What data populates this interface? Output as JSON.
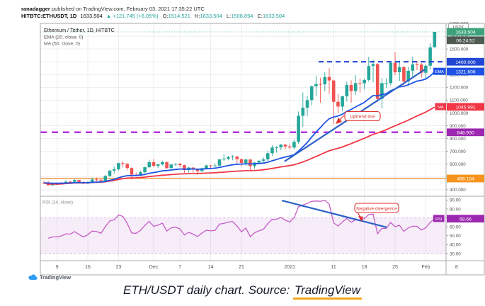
{
  "header": {
    "byline_user": "ranadagger",
    "byline_rest": " published on TradingView.com, February 03, 2021 17:35:22 UTC",
    "symbol": "HITBTC:ETHUSDT, 1D",
    "price": "1633.504",
    "change": "▲ +121.745 (+8.05%)",
    "o_label": "O:",
    "o": "1514.521",
    "h_label": "H:",
    "h": "1633.504",
    "l_label": "L:",
    "l": "1508.894",
    "c_label": "C:",
    "c": "1633.504"
  },
  "legend": {
    "main_title": "Ethereum / Tether, 1D, HITBTC",
    "ema_label": "EMA (20, close, 0)",
    "ma_label": "MA (50, close, 0)",
    "rsi": "RSI (14, close)"
  },
  "annotations": {
    "uptrend": "Uptrend line",
    "divergence": "Negative divergence"
  },
  "price_scale": {
    "symbol_box": "USDT",
    "last_price": "1633.504",
    "countdown": "06:24:52",
    "levels": {
      "blue_dashed": {
        "value": 1400,
        "label": "1400.000"
      },
      "ema": {
        "tag": "EMA",
        "value": 1321.608,
        "label": "1321.608"
      },
      "ma": {
        "tag": "MA",
        "value": 1045.991,
        "label": "1045.991"
      },
      "purple_dashed": {
        "value": 848.93,
        "label": "848.930"
      },
      "orange": {
        "value": 488.134,
        "label": "488.134"
      }
    }
  },
  "rsi_scale": {
    "tag": "RSI",
    "value": 68.66,
    "label": "68.66"
  },
  "watermark": {
    "brand": "TradingView"
  },
  "caption": {
    "text": "ETH/USDT daily chart. Source: ",
    "link": "TradingView"
  },
  "colors": {
    "up": "#26a69a",
    "down": "#ef5350",
    "ema": "#1e53e5",
    "ma": "#f23645",
    "drawn_line": "#2d63c8",
    "rsi_line": "#c65cc6",
    "purple_level": "#b433e0",
    "purple_badge": "#9c27b0",
    "orange_level": "#f2a254",
    "orange_badge": "#f7941d",
    "blue_level": "#2247d4",
    "price_badge": "#3da27b",
    "countdown_badge": "#4e5a52",
    "annotation": "#e0312e",
    "grid": "#ededf0",
    "border": "#a8a8a8",
    "axis_text": "#555555",
    "band_fill": "rgba(164,80,196,0.10)",
    "band_edge": "#d9b8e6",
    "link_underline": "#f5a623"
  },
  "chart_data": {
    "type": "candlestick",
    "title": "Ethereum / Tether, 1D, HITBTC",
    "x_axis": {
      "labels": [
        [
          3,
          "9"
        ],
        [
          10,
          "16"
        ],
        [
          17,
          "23"
        ],
        [
          25,
          "Dec"
        ],
        [
          31,
          "7"
        ],
        [
          38,
          "14"
        ],
        [
          45,
          "21"
        ],
        [
          56,
          "2021"
        ],
        [
          66,
          "11"
        ],
        [
          73,
          "18"
        ],
        [
          80,
          "25"
        ],
        [
          87,
          "Feb"
        ],
        [
          94,
          "8"
        ]
      ]
    },
    "price_axis": {
      "min": 355,
      "max": 1700,
      "tick_min": 400,
      "tick_max": 1700,
      "tick_step": 100
    },
    "overlays": {
      "ema_period": 20,
      "ma_period": 50
    },
    "levels": {
      "resistance": 1400,
      "support_purple": 848.93,
      "support_orange": 488.134,
      "last": 1633.504,
      "ema": 1321.608,
      "ma": 1045.991
    },
    "trendlines": {
      "main": {
        "from": [
          54.8,
          621
        ],
        "to": [
          86.8,
          1340
        ]
      }
    },
    "rsi": {
      "period": 14,
      "last": 68.66,
      "band": [
        30,
        70
      ],
      "axis_ticks": [
        30,
        40,
        50,
        60,
        70,
        80,
        90
      ],
      "trendline": {
        "from": [
          54.2,
          89.5
        ],
        "to": [
          78.1,
          59.4
        ]
      }
    },
    "candles_ohlc": [
      [
        455,
        468,
        444,
        454
      ],
      [
        454,
        468,
        433,
        435
      ],
      [
        435,
        455,
        430,
        444
      ],
      [
        444,
        452,
        438,
        444
      ],
      [
        444,
        460,
        440,
        450
      ],
      [
        450,
        473,
        448,
        463
      ],
      [
        463,
        470,
        452,
        462
      ],
      [
        462,
        482,
        453,
        476
      ],
      [
        476,
        478,
        455,
        461
      ],
      [
        461,
        465,
        445,
        448
      ],
      [
        448,
        468,
        444,
        460
      ],
      [
        460,
        495,
        455,
        480
      ],
      [
        480,
        495,
        465,
        478
      ],
      [
        478,
        482,
        460,
        470
      ],
      [
        470,
        515,
        466,
        508
      ],
      [
        508,
        552,
        500,
        550
      ],
      [
        550,
        580,
        525,
        560
      ],
      [
        560,
        612,
        552,
        608
      ],
      [
        608,
        623,
        575,
        602
      ],
      [
        602,
        608,
        553,
        570
      ],
      [
        570,
        577,
        480,
        518
      ],
      [
        518,
        535,
        505,
        516
      ],
      [
        516,
        548,
        508,
        537
      ],
      [
        537,
        580,
        530,
        576
      ],
      [
        576,
        635,
        570,
        615
      ],
      [
        615,
        640,
        575,
        587
      ],
      [
        587,
        603,
        570,
        598
      ],
      [
        598,
        625,
        590,
        616
      ],
      [
        616,
        620,
        560,
        569
      ],
      [
        569,
        601,
        565,
        597
      ],
      [
        597,
        607,
        585,
        602
      ],
      [
        602,
        608,
        578,
        592
      ],
      [
        592,
        595,
        532,
        554
      ],
      [
        554,
        578,
        535,
        573
      ],
      [
        573,
        577,
        535,
        561
      ],
      [
        561,
        567,
        515,
        545
      ],
      [
        545,
        573,
        540,
        568
      ],
      [
        568,
        595,
        562,
        590
      ],
      [
        590,
        593,
        570,
        586
      ],
      [
        586,
        605,
        570,
        589
      ],
      [
        589,
        640,
        585,
        637
      ],
      [
        637,
        676,
        625,
        643
      ],
      [
        643,
        665,
        630,
        655
      ],
      [
        655,
        670,
        630,
        659
      ],
      [
        659,
        665,
        600,
        639
      ],
      [
        639,
        645,
        585,
        610
      ],
      [
        610,
        645,
        588,
        636
      ],
      [
        636,
        640,
        550,
        585
      ],
      [
        585,
        618,
        565,
        612
      ],
      [
        612,
        634,
        600,
        626
      ],
      [
        626,
        653,
        610,
        637
      ],
      [
        637,
        705,
        625,
        685
      ],
      [
        685,
        748,
        665,
        730
      ],
      [
        730,
        740,
        690,
        732
      ],
      [
        732,
        758,
        710,
        752
      ],
      [
        752,
        760,
        715,
        738
      ],
      [
        738,
        755,
        715,
        730
      ],
      [
        730,
        792,
        715,
        775
      ],
      [
        775,
        1011,
        760,
        978
      ],
      [
        978,
        1160,
        890,
        1041
      ],
      [
        1041,
        1135,
        975,
        1100
      ],
      [
        1100,
        1215,
        1060,
        1208
      ],
      [
        1208,
        1290,
        1135,
        1226
      ],
      [
        1226,
        1275,
        1080,
        1224
      ],
      [
        1224,
        1320,
        1170,
        1281
      ],
      [
        1281,
        1350,
        1150,
        1254
      ],
      [
        1254,
        1260,
        915,
        1087
      ],
      [
        1087,
        1150,
        1000,
        1050
      ],
      [
        1050,
        1135,
        1015,
        1130
      ],
      [
        1130,
        1245,
        1090,
        1218
      ],
      [
        1218,
        1255,
        1080,
        1171
      ],
      [
        1171,
        1295,
        1140,
        1233
      ],
      [
        1233,
        1268,
        1160,
        1232
      ],
      [
        1232,
        1270,
        1185,
        1258
      ],
      [
        1258,
        1438,
        1245,
        1367
      ],
      [
        1367,
        1415,
        1240,
        1382
      ],
      [
        1382,
        1390,
        1085,
        1110
      ],
      [
        1110,
        1273,
        1035,
        1233
      ],
      [
        1233,
        1272,
        1195,
        1233
      ],
      [
        1233,
        1400,
        1215,
        1392
      ],
      [
        1392,
        1475,
        1295,
        1318
      ],
      [
        1318,
        1410,
        1250,
        1358
      ],
      [
        1358,
        1370,
        1205,
        1246
      ],
      [
        1246,
        1360,
        1210,
        1330
      ],
      [
        1330,
        1440,
        1285,
        1380
      ],
      [
        1380,
        1407,
        1335,
        1378
      ],
      [
        1378,
        1390,
        1275,
        1314
      ],
      [
        1314,
        1380,
        1265,
        1369
      ],
      [
        1369,
        1545,
        1340,
        1512
      ],
      [
        1514.521,
        1633.504,
        1508.894,
        1633.504
      ]
    ]
  }
}
